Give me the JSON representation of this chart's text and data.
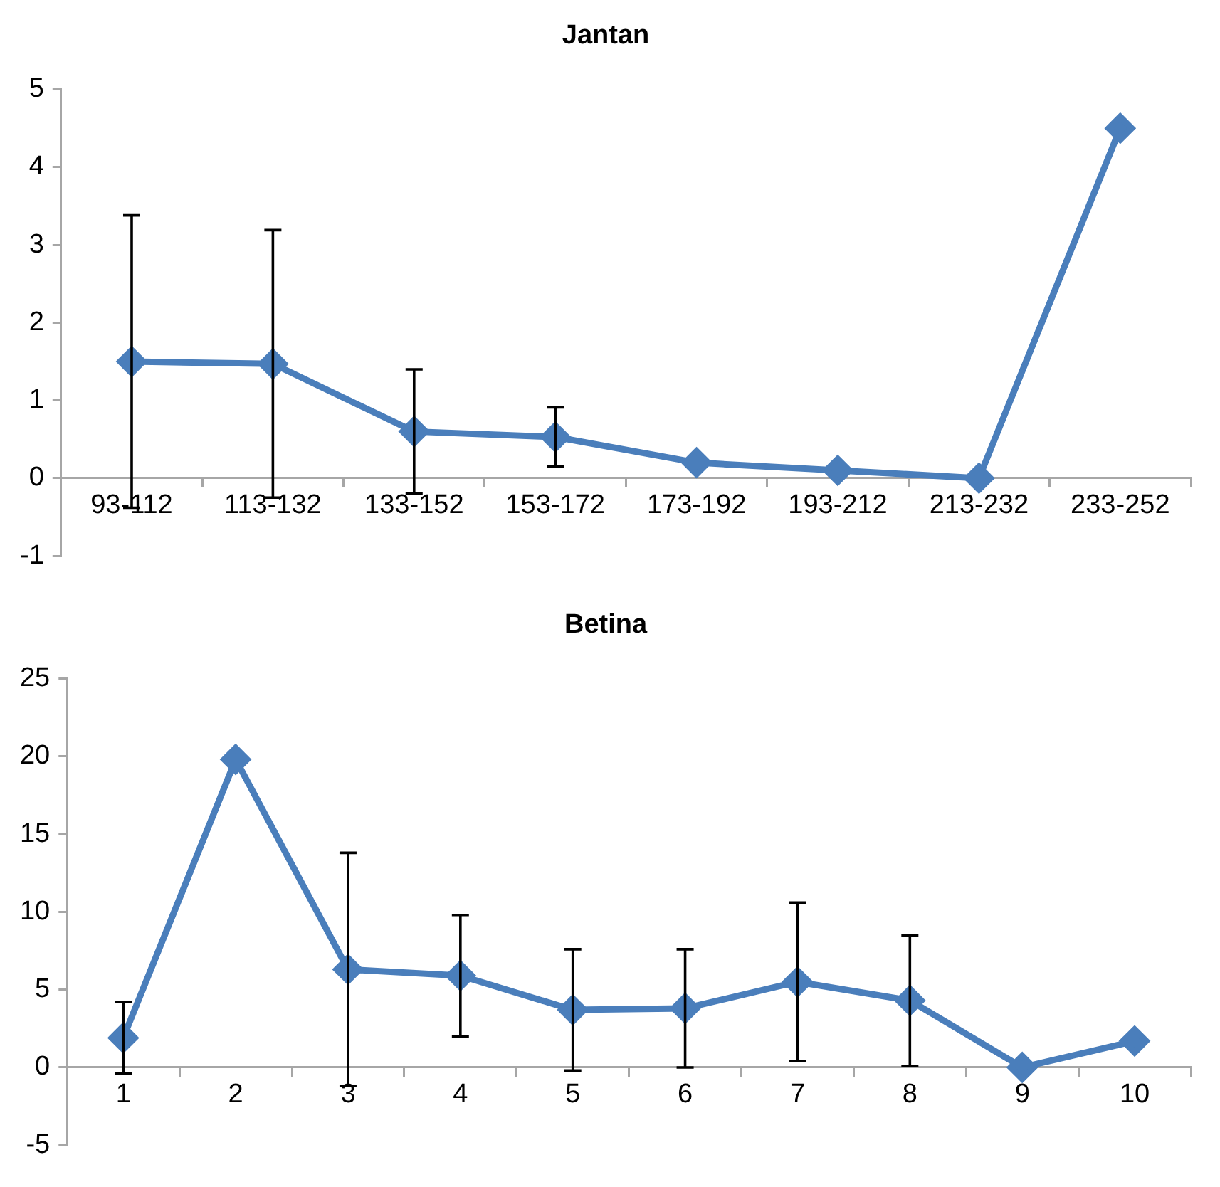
{
  "chart_data": [
    {
      "type": "line",
      "title": "Jantan",
      "categories": [
        "93-112",
        "113-132",
        "133-152",
        "153-172",
        "173-192",
        "193-212",
        "213-232",
        "233-252"
      ],
      "series": [
        {
          "color": "#4a7ebb",
          "values": [
            1.5,
            1.47,
            0.6,
            0.53,
            0.2,
            0.1,
            0,
            4.5
          ],
          "errors": [
            1.88,
            1.72,
            0.8,
            0.38,
            null,
            null,
            null,
            null
          ]
        }
      ],
      "ylim": [
        -1,
        5
      ],
      "yticks": [
        -1,
        0,
        1,
        2,
        3,
        4,
        5
      ],
      "grid": false,
      "legend": false,
      "marker": "diamond",
      "line_style": "solid"
    },
    {
      "type": "line",
      "title": "Betina",
      "categories": [
        "1",
        "2",
        "3",
        "4",
        "5",
        "6",
        "7",
        "8",
        "9",
        "10"
      ],
      "series": [
        {
          "color": "#4a7ebb",
          "values": [
            1.9,
            19.8,
            6.3,
            5.9,
            3.7,
            3.8,
            5.5,
            4.3,
            0,
            1.7
          ],
          "errors": [
            2.3,
            null,
            7.5,
            3.9,
            3.9,
            3.8,
            5.1,
            4.2,
            null,
            null
          ]
        }
      ],
      "ylim": [
        -5,
        25
      ],
      "yticks": [
        -5,
        0,
        5,
        10,
        15,
        20,
        25
      ],
      "grid": false,
      "legend": false,
      "marker": "diamond",
      "line_style": "solid"
    }
  ]
}
